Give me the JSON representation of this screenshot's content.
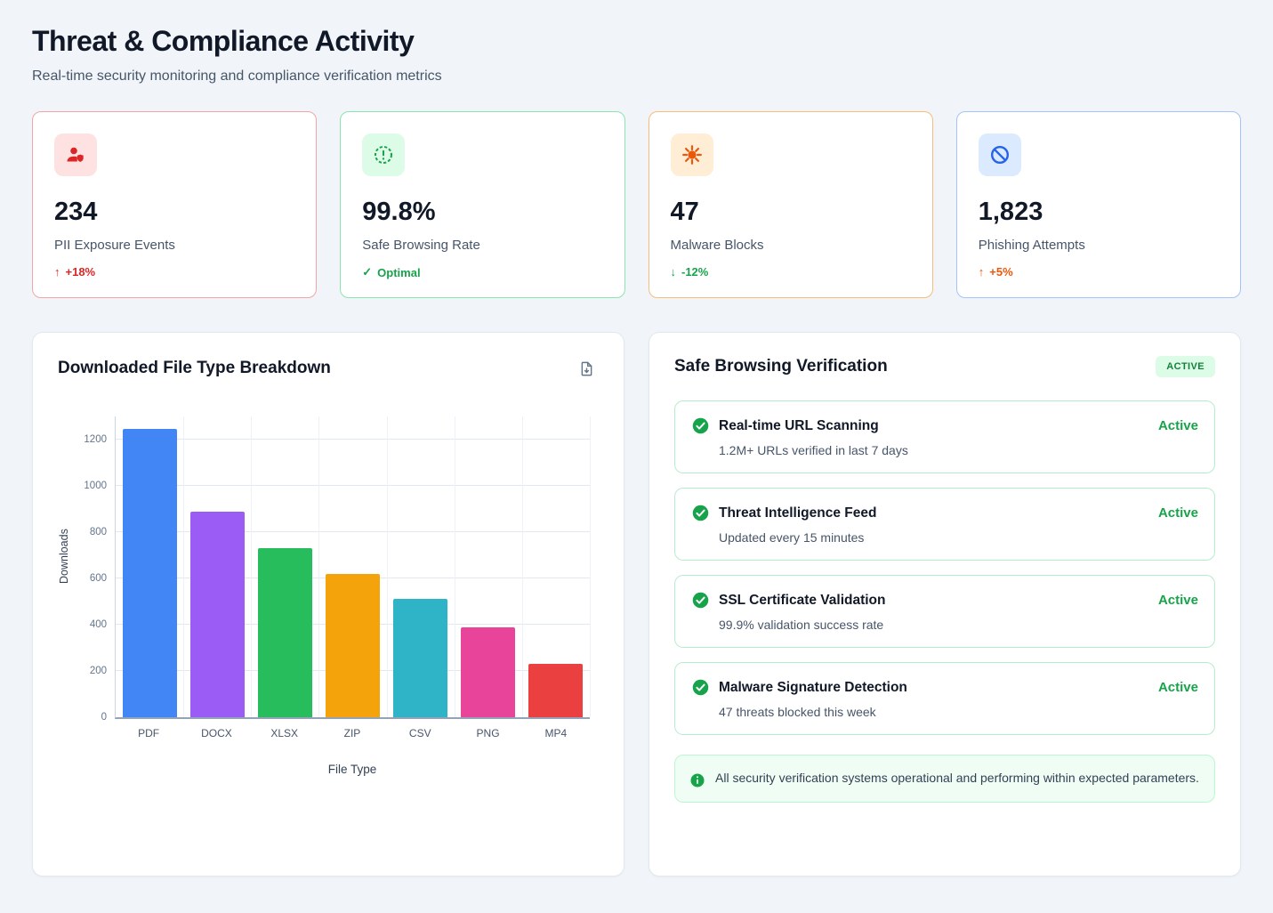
{
  "page": {
    "title": "Threat & Compliance Activity",
    "subtitle": "Real-time security monitoring and compliance verification metrics"
  },
  "stats": [
    {
      "icon": "pii-user-icon",
      "icon_color": "#dc2626",
      "icon_bg": "#fee2e2",
      "border_color": "#f3a6a6",
      "value": "234",
      "label": "PII Exposure Events",
      "trend_arrow": "↑",
      "trend": "+18%",
      "trend_color": "#dc2626"
    },
    {
      "icon": "alert-circle-icon",
      "icon_color": "#16a34a",
      "icon_bg": "#dcfce7",
      "border_color": "#8be3ae",
      "value": "99.8%",
      "label": "Safe Browsing Rate",
      "trend_arrow": "✓",
      "trend": "Optimal",
      "trend_color": "#16a34a"
    },
    {
      "icon": "virus-icon",
      "icon_color": "#ea580c",
      "icon_bg": "#ffedd5",
      "border_color": "#f7bd7b",
      "value": "47",
      "label": "Malware Blocks",
      "trend_arrow": "↓",
      "trend": "-12%",
      "trend_color": "#16a34a"
    },
    {
      "icon": "block-icon",
      "icon_color": "#2563eb",
      "icon_bg": "#dbeafe",
      "border_color": "#a3c4f8",
      "value": "1,823",
      "label": "Phishing Attempts",
      "trend_arrow": "↑",
      "trend": "+5%",
      "trend_color": "#ea580c"
    }
  ],
  "chart_panel": {
    "title": "Downloaded File Type Breakdown",
    "export_icon": "download-file-icon"
  },
  "chart_data": {
    "type": "bar",
    "title": "Downloaded File Type Breakdown",
    "categories": [
      "PDF",
      "DOCX",
      "XLSX",
      "ZIP",
      "CSV",
      "PNG",
      "MP4"
    ],
    "values": [
      1245,
      890,
      730,
      620,
      510,
      390,
      230
    ],
    "colors": [
      "#4285f4",
      "#9b5cf6",
      "#27bd5c",
      "#f5a30b",
      "#2eb3c7",
      "#e8459a",
      "#ea4040"
    ],
    "xlabel": "File Type",
    "ylabel": "Downloads",
    "ylim": [
      0,
      1300
    ],
    "yticks": [
      0,
      200,
      400,
      600,
      800,
      1000,
      1200
    ],
    "grid": true,
    "legend": "none"
  },
  "verification_panel": {
    "title": "Safe Browsing Verification",
    "badge": "ACTIVE",
    "items": [
      {
        "title": "Real-time URL Scanning",
        "subtitle": "1.2M+ URLs verified in last 7 days",
        "status": "Active"
      },
      {
        "title": "Threat Intelligence Feed",
        "subtitle": "Updated every 15 minutes",
        "status": "Active"
      },
      {
        "title": "SSL Certificate Validation",
        "subtitle": "99.9% validation success rate",
        "status": "Active"
      },
      {
        "title": "Malware Signature Detection",
        "subtitle": "47 threats blocked this week",
        "status": "Active"
      }
    ],
    "note": "All security verification systems operational and performing within expected parameters."
  }
}
